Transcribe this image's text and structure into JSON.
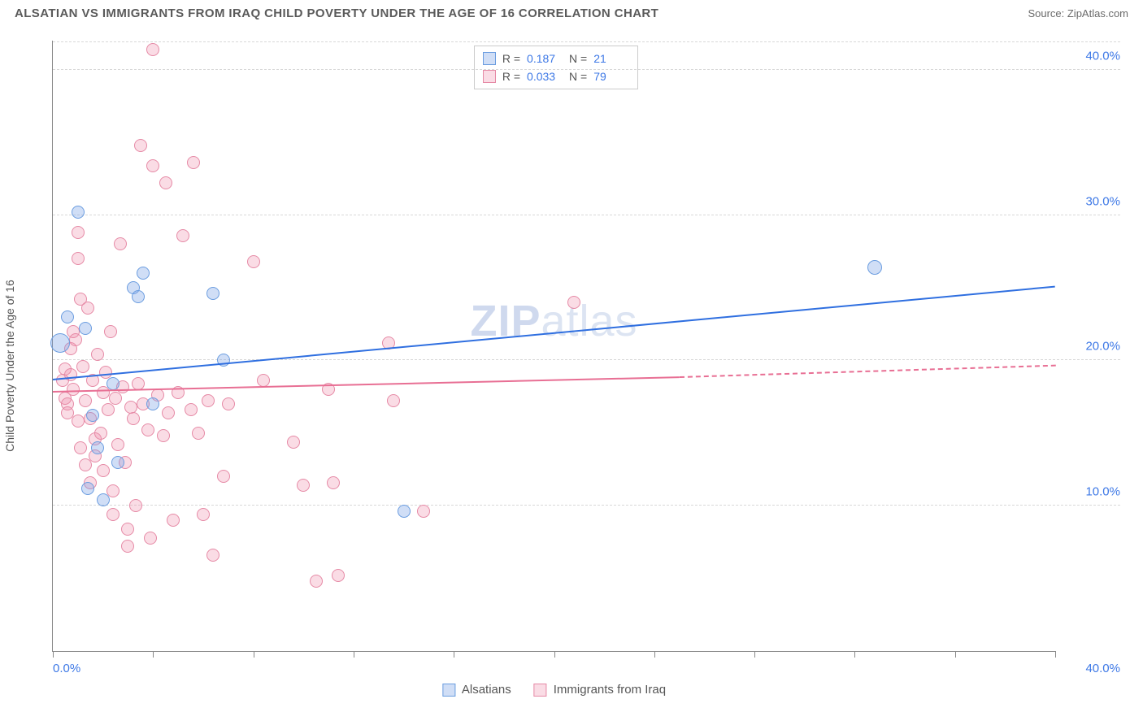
{
  "header": {
    "title": "ALSATIAN VS IMMIGRANTS FROM IRAQ CHILD POVERTY UNDER THE AGE OF 16 CORRELATION CHART",
    "source": "Source: ZipAtlas.com"
  },
  "chart": {
    "type": "scatter",
    "ylabel": "Child Poverty Under the Age of 16",
    "xlim": [
      0,
      40
    ],
    "ylim": [
      0,
      42
    ],
    "ytick_values": [
      10,
      20,
      30,
      40
    ],
    "ytick_labels": [
      "10.0%",
      "20.0%",
      "30.0%",
      "40.0%"
    ],
    "ytick_color": "#3d78e6",
    "xtick_positions": [
      0,
      4,
      8,
      12,
      16,
      20,
      24,
      28,
      32,
      36,
      40
    ],
    "xaxis_labels": [
      {
        "x": 0,
        "text": "0.0%"
      },
      {
        "x": 40,
        "text": "40.0%"
      }
    ],
    "xaxis_label_color": "#3d78e6",
    "grid_color": "#d8d8d8",
    "background_color": "#ffffff",
    "watermark": {
      "text_bold": "ZIP",
      "text_light": "atlas",
      "color": "#cfd9ee"
    },
    "series": [
      {
        "name": "Alsatians",
        "fill": "rgba(120,160,230,0.35)",
        "stroke": "#6b9de0",
        "line_color": "#2f6fe0",
        "r": 0.187,
        "n": 21,
        "trend": {
          "x1": 0,
          "y1": 18.6,
          "x2": 40,
          "y2": 25.0,
          "dash": false
        },
        "points": [
          [
            0.3,
            21.2,
            12
          ],
          [
            0.6,
            23.0,
            8
          ],
          [
            1.0,
            30.2,
            8
          ],
          [
            1.3,
            22.2,
            8
          ],
          [
            1.4,
            11.2,
            8
          ],
          [
            1.6,
            16.2,
            8
          ],
          [
            1.8,
            14.0,
            8
          ],
          [
            2.0,
            10.4,
            8
          ],
          [
            2.4,
            18.4,
            8
          ],
          [
            2.6,
            13.0,
            8
          ],
          [
            3.2,
            25.0,
            8
          ],
          [
            3.4,
            24.4,
            8
          ],
          [
            3.6,
            26.0,
            8
          ],
          [
            4.0,
            17.0,
            8
          ],
          [
            6.4,
            24.6,
            8
          ],
          [
            6.8,
            20.0,
            8
          ],
          [
            14.0,
            9.6,
            8
          ],
          [
            32.8,
            26.4,
            9
          ]
        ]
      },
      {
        "name": "Immigrants from Iraq",
        "fill": "rgba(240,140,170,0.30)",
        "stroke": "#e68aa6",
        "line_color": "#e86f94",
        "r": 0.033,
        "n": 79,
        "trend_solid": {
          "x1": 0,
          "y1": 17.8,
          "x2": 25,
          "y2": 18.8
        },
        "trend_dash": {
          "x1": 25,
          "y1": 18.8,
          "x2": 40,
          "y2": 19.6
        },
        "points": [
          [
            0.4,
            18.6,
            8
          ],
          [
            0.5,
            19.4,
            8
          ],
          [
            0.5,
            17.4,
            8
          ],
          [
            0.6,
            17.0,
            8
          ],
          [
            0.6,
            16.4,
            8
          ],
          [
            0.7,
            20.8,
            8
          ],
          [
            0.7,
            19.0,
            8
          ],
          [
            0.8,
            22.0,
            8
          ],
          [
            0.8,
            18.0,
            8
          ],
          [
            0.9,
            21.4,
            8
          ],
          [
            1.0,
            28.8,
            8
          ],
          [
            1.0,
            27.0,
            8
          ],
          [
            1.0,
            15.8,
            8
          ],
          [
            1.1,
            24.2,
            8
          ],
          [
            1.1,
            14.0,
            8
          ],
          [
            1.2,
            19.6,
            8
          ],
          [
            1.3,
            17.2,
            8
          ],
          [
            1.3,
            12.8,
            8
          ],
          [
            1.4,
            23.6,
            8
          ],
          [
            1.5,
            16.0,
            8
          ],
          [
            1.5,
            11.6,
            8
          ],
          [
            1.6,
            18.6,
            8
          ],
          [
            1.7,
            14.6,
            8
          ],
          [
            1.7,
            13.4,
            8
          ],
          [
            1.8,
            20.4,
            8
          ],
          [
            1.9,
            15.0,
            8
          ],
          [
            2.0,
            17.8,
            8
          ],
          [
            2.0,
            12.4,
            8
          ],
          [
            2.1,
            19.2,
            8
          ],
          [
            2.2,
            16.6,
            8
          ],
          [
            2.3,
            22.0,
            8
          ],
          [
            2.4,
            11.0,
            8
          ],
          [
            2.4,
            9.4,
            8
          ],
          [
            2.5,
            17.4,
            8
          ],
          [
            2.6,
            14.2,
            8
          ],
          [
            2.7,
            28.0,
            8
          ],
          [
            2.8,
            18.2,
            8
          ],
          [
            2.9,
            13.0,
            8
          ],
          [
            3.0,
            8.4,
            8
          ],
          [
            3.0,
            7.2,
            8
          ],
          [
            3.1,
            16.8,
            8
          ],
          [
            3.2,
            16.0,
            8
          ],
          [
            3.3,
            10.0,
            8
          ],
          [
            3.4,
            18.4,
            8
          ],
          [
            3.5,
            34.8,
            8
          ],
          [
            3.6,
            17.0,
            8
          ],
          [
            3.8,
            15.2,
            8
          ],
          [
            3.9,
            7.8,
            8
          ],
          [
            4.0,
            41.4,
            8
          ],
          [
            4.0,
            33.4,
            8
          ],
          [
            4.2,
            17.6,
            8
          ],
          [
            4.4,
            14.8,
            8
          ],
          [
            4.5,
            32.2,
            8
          ],
          [
            4.6,
            16.4,
            8
          ],
          [
            4.8,
            9.0,
            8
          ],
          [
            5.0,
            17.8,
            8
          ],
          [
            5.2,
            28.6,
            8
          ],
          [
            5.5,
            16.6,
            8
          ],
          [
            5.6,
            33.6,
            8
          ],
          [
            5.8,
            15.0,
            8
          ],
          [
            6.0,
            9.4,
            8
          ],
          [
            6.2,
            17.2,
            8
          ],
          [
            6.4,
            6.6,
            8
          ],
          [
            6.8,
            12.0,
            8
          ],
          [
            7.0,
            17.0,
            8
          ],
          [
            8.0,
            26.8,
            8
          ],
          [
            8.4,
            18.6,
            8
          ],
          [
            9.6,
            14.4,
            8
          ],
          [
            10.0,
            11.4,
            8
          ],
          [
            10.5,
            4.8,
            8
          ],
          [
            11.0,
            18.0,
            8
          ],
          [
            11.2,
            11.6,
            8
          ],
          [
            11.4,
            5.2,
            8
          ],
          [
            13.4,
            21.2,
            8
          ],
          [
            13.6,
            17.2,
            8
          ],
          [
            14.8,
            9.6,
            8
          ],
          [
            20.8,
            24.0,
            8
          ]
        ]
      }
    ],
    "legend_top": {
      "rows": [
        {
          "series": 0,
          "r_label": "R  =",
          "r": "0.187",
          "n_label": "N  =",
          "n": "21"
        },
        {
          "series": 1,
          "r_label": "R  =",
          "r": "0.033",
          "n_label": "N  =",
          "n": "79"
        }
      ]
    },
    "legend_bottom": [
      {
        "series": 0,
        "label": "Alsatians"
      },
      {
        "series": 1,
        "label": "Immigrants from Iraq"
      }
    ]
  }
}
